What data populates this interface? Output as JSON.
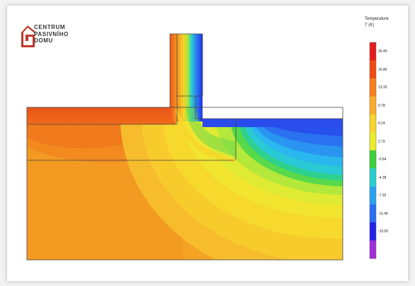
{
  "logo": {
    "line1": "CENTRUM",
    "line2": "PASIVNÍHO",
    "line3": "DOMU",
    "color": "#c0392b"
  },
  "legend": {
    "title": "Temperature",
    "unit": "T (K)",
    "labels": [
      "20.40",
      "16.86",
      "13.32",
      "9.78",
      "6.24",
      "2.70",
      "-0.84",
      "-4.38",
      "-7.92",
      "-11.46",
      "-15.00"
    ],
    "colors": [
      "#e41b1b",
      "#f04a10",
      "#f67f1a",
      "#f9ad2a",
      "#f7d52a",
      "#e9ec2a",
      "#3cd23c",
      "#2ad0cf",
      "#2aa2ef",
      "#2a6ef0",
      "#2424e8",
      "#a02bd8"
    ]
  }
}
